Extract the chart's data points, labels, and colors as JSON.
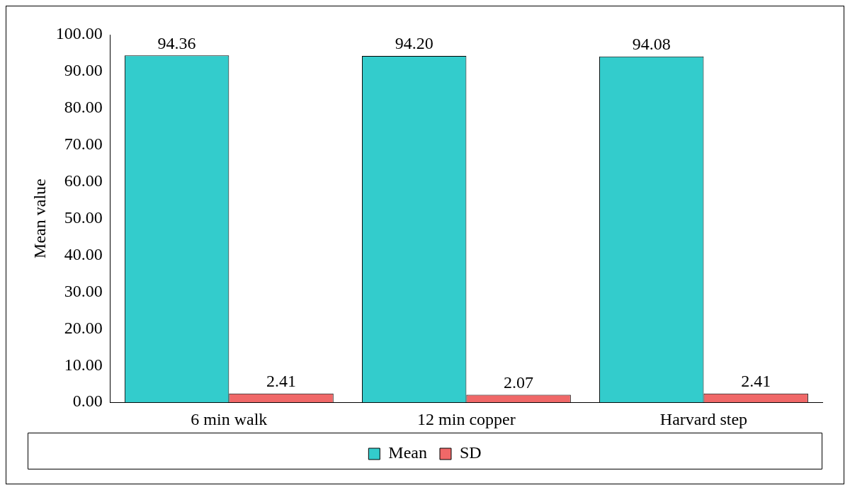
{
  "chart_data": {
    "type": "bar",
    "ylabel": "Mean value",
    "categories": [
      "6 min walk",
      "12 min copper",
      "Harvard step"
    ],
    "series": [
      {
        "name": "Mean",
        "color": "#33cccc",
        "values": [
          94.36,
          94.2,
          94.08
        ],
        "value_labels": [
          "94.36",
          "94.20",
          "94.08"
        ]
      },
      {
        "name": "SD",
        "color": "#f06868",
        "values": [
          2.41,
          2.07,
          2.41
        ],
        "value_labels": [
          "2.41",
          "2.07",
          "2.41"
        ]
      }
    ],
    "ylim": [
      0,
      100
    ],
    "yticks": [
      {
        "value": 0,
        "label": "0.00"
      },
      {
        "value": 10,
        "label": "10.00"
      },
      {
        "value": 20,
        "label": "20.00"
      },
      {
        "value": 30,
        "label": "30.00"
      },
      {
        "value": 40,
        "label": "40.00"
      },
      {
        "value": 50,
        "label": "50.00"
      },
      {
        "value": 60,
        "label": "60.00"
      },
      {
        "value": 70,
        "label": "70.00"
      },
      {
        "value": 80,
        "label": "80.00"
      },
      {
        "value": 90,
        "label": "90.00"
      },
      {
        "value": 100,
        "label": "100.00"
      }
    ],
    "grid": false,
    "legend": "bottom"
  }
}
